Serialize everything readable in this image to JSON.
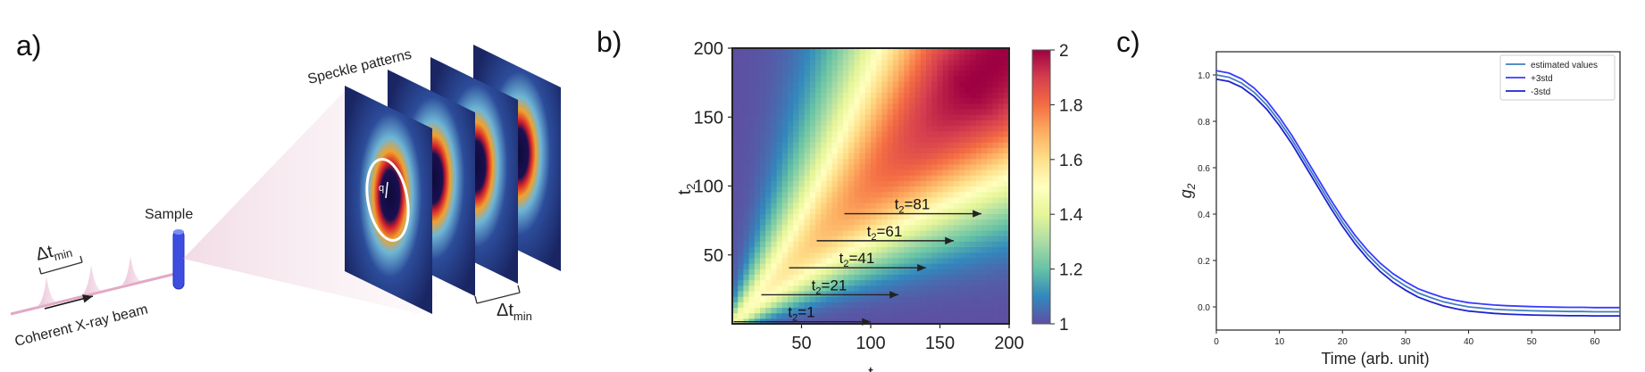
{
  "panels": {
    "a": {
      "letter": "a)",
      "sample_label": "Sample",
      "beam_label": "Coherent X-ray beam",
      "speckle_label": "Speckle patterns",
      "dt_base": "Δt",
      "dt_sub": "min",
      "q_label": "q"
    },
    "b": {
      "letter": "b)"
    },
    "c": {
      "letter": "c)"
    }
  },
  "chart_data": [
    {
      "type": "heatmap",
      "panel": "b",
      "description_of_values": "two-time correlation map, symmetric, high values along diagonal, decreasing away from it",
      "xlabel": "t",
      "ylabel": "t2",
      "xlim": [
        0,
        200
      ],
      "ylim": [
        0,
        200
      ],
      "x_ticks": [
        50,
        100,
        150,
        200
      ],
      "y_ticks": [
        50,
        100,
        150,
        200
      ],
      "colorbar": {
        "min": 1,
        "max": 2,
        "ticks": [
          1,
          1.2,
          1.4,
          1.6,
          1.8,
          2
        ],
        "colormap": "Spectral_r"
      },
      "annotations": [
        {
          "text": "t2=1",
          "t2": 1,
          "x_start": 1,
          "x_end": 100
        },
        {
          "text": "t2=21",
          "t2": 21,
          "x_start": 21,
          "x_end": 120
        },
        {
          "text": "t2=41",
          "t2": 41,
          "x_start": 41,
          "x_end": 140
        },
        {
          "text": "t2=61",
          "t2": 61,
          "x_start": 61,
          "x_end": 160
        },
        {
          "text": "t2=81",
          "t2": 81,
          "x_start": 81,
          "x_end": 180
        }
      ]
    },
    {
      "type": "line",
      "panel": "c",
      "xlabel": "Time (arb. unit)",
      "ylabel": "g2",
      "xlim": [
        0,
        64
      ],
      "ylim": [
        -0.1,
        1.1
      ],
      "x_ticks": [
        0,
        10,
        20,
        30,
        40,
        50,
        60
      ],
      "y_ticks": [
        0.0,
        0.2,
        0.4,
        0.6,
        0.8,
        1.0
      ],
      "legend_position": "top-right",
      "x": [
        0,
        2,
        4,
        6,
        8,
        10,
        12,
        14,
        16,
        18,
        20,
        22,
        24,
        26,
        28,
        30,
        32,
        34,
        36,
        38,
        40,
        42,
        44,
        46,
        48,
        50,
        52,
        54,
        56,
        58,
        60,
        62,
        64
      ],
      "series": [
        {
          "name": "estimated values",
          "color": "#3f7fbf",
          "values": [
            1.0,
            0.99,
            0.965,
            0.925,
            0.87,
            0.8,
            0.72,
            0.63,
            0.54,
            0.45,
            0.365,
            0.29,
            0.225,
            0.17,
            0.125,
            0.09,
            0.06,
            0.04,
            0.022,
            0.01,
            0.0,
            -0.005,
            -0.01,
            -0.013,
            -0.015,
            -0.017,
            -0.018,
            -0.019,
            -0.02,
            -0.02,
            -0.021,
            -0.021,
            -0.021
          ]
        },
        {
          "name": "+3std",
          "color": "#3a3aff",
          "values": [
            1.018,
            1.008,
            0.983,
            0.943,
            0.888,
            0.818,
            0.738,
            0.648,
            0.558,
            0.468,
            0.383,
            0.308,
            0.243,
            0.188,
            0.143,
            0.108,
            0.078,
            0.058,
            0.04,
            0.028,
            0.018,
            0.013,
            0.008,
            0.005,
            0.003,
            0.001,
            0.0,
            -0.001,
            -0.002,
            -0.002,
            -0.003,
            -0.003,
            -0.003
          ]
        },
        {
          "name": "-3std",
          "color": "#2020d0",
          "values": [
            0.982,
            0.972,
            0.947,
            0.907,
            0.852,
            0.782,
            0.702,
            0.612,
            0.522,
            0.432,
            0.347,
            0.272,
            0.207,
            0.152,
            0.107,
            0.072,
            0.042,
            0.022,
            0.004,
            -0.008,
            -0.018,
            -0.023,
            -0.028,
            -0.031,
            -0.033,
            -0.035,
            -0.036,
            -0.037,
            -0.038,
            -0.038,
            -0.039,
            -0.039,
            -0.039
          ]
        }
      ]
    }
  ]
}
